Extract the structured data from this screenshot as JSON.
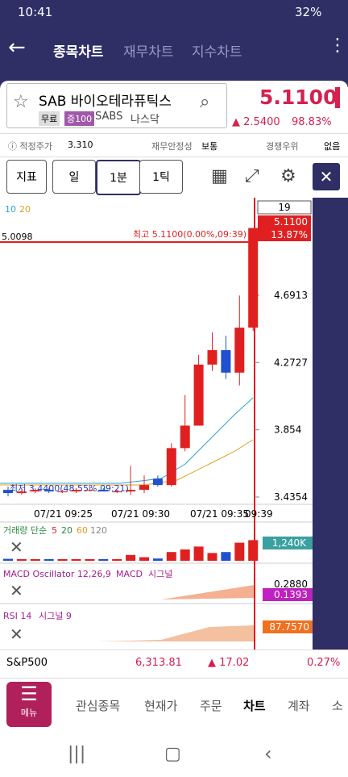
{
  "status": {
    "time": "10:41",
    "battery": "32%"
  },
  "tabs": [
    "종목차트",
    "재무차트",
    "지수차트"
  ],
  "stock": {
    "name": "SAB 바이오테라퓨틱스",
    "badges": [
      "무료",
      "증100"
    ],
    "ticker": "SABS",
    "market": "나스닥",
    "price": "5.1100",
    "change": "2.5400",
    "change_pct": "98.83%"
  },
  "info": {
    "fair_label": "적정주가",
    "fair_value": "3.310",
    "stability_label": "재무안정성",
    "stability_value": "보통",
    "moat_label": "경쟁우위",
    "moat_value": "없음"
  },
  "toolbar": [
    "지표",
    "일",
    "1분",
    "1틱"
  ],
  "chart": {
    "ma_labels": [
      "10",
      "20"
    ],
    "count": "19",
    "last_price": "5.1100",
    "last_pct": "13.87%",
    "left_price": "5.0098",
    "high_note": "최고 5.1100(0.00%,09:39)",
    "low_note": "최저 3.4400(48.55%,09:21)",
    "yticks": [
      4.6913,
      4.2727,
      3.854,
      {
        "value": 3.4354,
        "label": "3.4354"
      }
    ],
    "times": [
      "07/21 09:25",
      "07/21 09:30",
      "07/21 09:35",
      "09:39"
    ],
    "candles": [
      {
        "open": 3.48,
        "high": 3.5,
        "low": 3.44,
        "close": 3.46
      },
      {
        "open": 3.46,
        "high": 3.48,
        "low": 3.45,
        "close": 3.47
      },
      {
        "open": 3.47,
        "high": 3.49,
        "low": 3.46,
        "close": 3.48
      },
      {
        "open": 3.48,
        "high": 3.49,
        "low": 3.46,
        "close": 3.47
      },
      {
        "open": 3.47,
        "high": 3.48,
        "low": 3.46,
        "close": 3.47
      },
      {
        "open": 3.47,
        "high": 3.49,
        "low": 3.46,
        "close": 3.48
      },
      {
        "open": 3.48,
        "high": 3.49,
        "low": 3.47,
        "close": 3.48
      },
      {
        "open": 3.48,
        "high": 3.49,
        "low": 3.47,
        "close": 3.47
      },
      {
        "open": 3.47,
        "high": 3.48,
        "low": 3.46,
        "close": 3.47
      },
      {
        "open": 3.47,
        "high": 3.63,
        "low": 3.45,
        "close": 3.48
      },
      {
        "open": 3.48,
        "high": 3.57,
        "low": 3.46,
        "close": 3.51
      },
      {
        "open": 3.55,
        "high": 3.57,
        "low": 3.5,
        "close": 3.51
      },
      {
        "open": 3.51,
        "high": 3.77,
        "low": 3.5,
        "close": 3.74
      },
      {
        "open": 3.74,
        "high": 4.07,
        "low": 3.72,
        "close": 3.88
      },
      {
        "open": 3.88,
        "high": 4.32,
        "low": 3.88,
        "close": 4.26
      },
      {
        "open": 4.26,
        "high": 4.46,
        "low": 4.22,
        "close": 4.35
      },
      {
        "open": 4.35,
        "high": 4.44,
        "low": 4.17,
        "close": 4.21
      },
      {
        "open": 4.21,
        "high": 4.69,
        "low": 4.13,
        "close": 4.49
      },
      {
        "open": 4.49,
        "high": 5.11,
        "low": 4.47,
        "close": 5.11
      }
    ]
  },
  "volume": {
    "label": "거래량 단순",
    "ma": [
      "5",
      "20",
      "60",
      "120"
    ],
    "value": "1,240K"
  },
  "macd": {
    "label": "MACD Oscillator 12,26,9",
    "label2": "MACD",
    "label3": "시그널",
    "tick": "0.2880",
    "value": "0.1393"
  },
  "rsi": {
    "label": "RSI 14",
    "label2": "시그널 9",
    "value": "87.7570"
  },
  "index": {
    "name": "S&P500",
    "value": "6,313.81",
    "change": "17.02",
    "pct": "0.27%"
  },
  "nav": {
    "menu": "메뉴",
    "items": [
      "관심종목",
      "현재가",
      "주문",
      "차트",
      "계좌",
      "소"
    ]
  }
}
